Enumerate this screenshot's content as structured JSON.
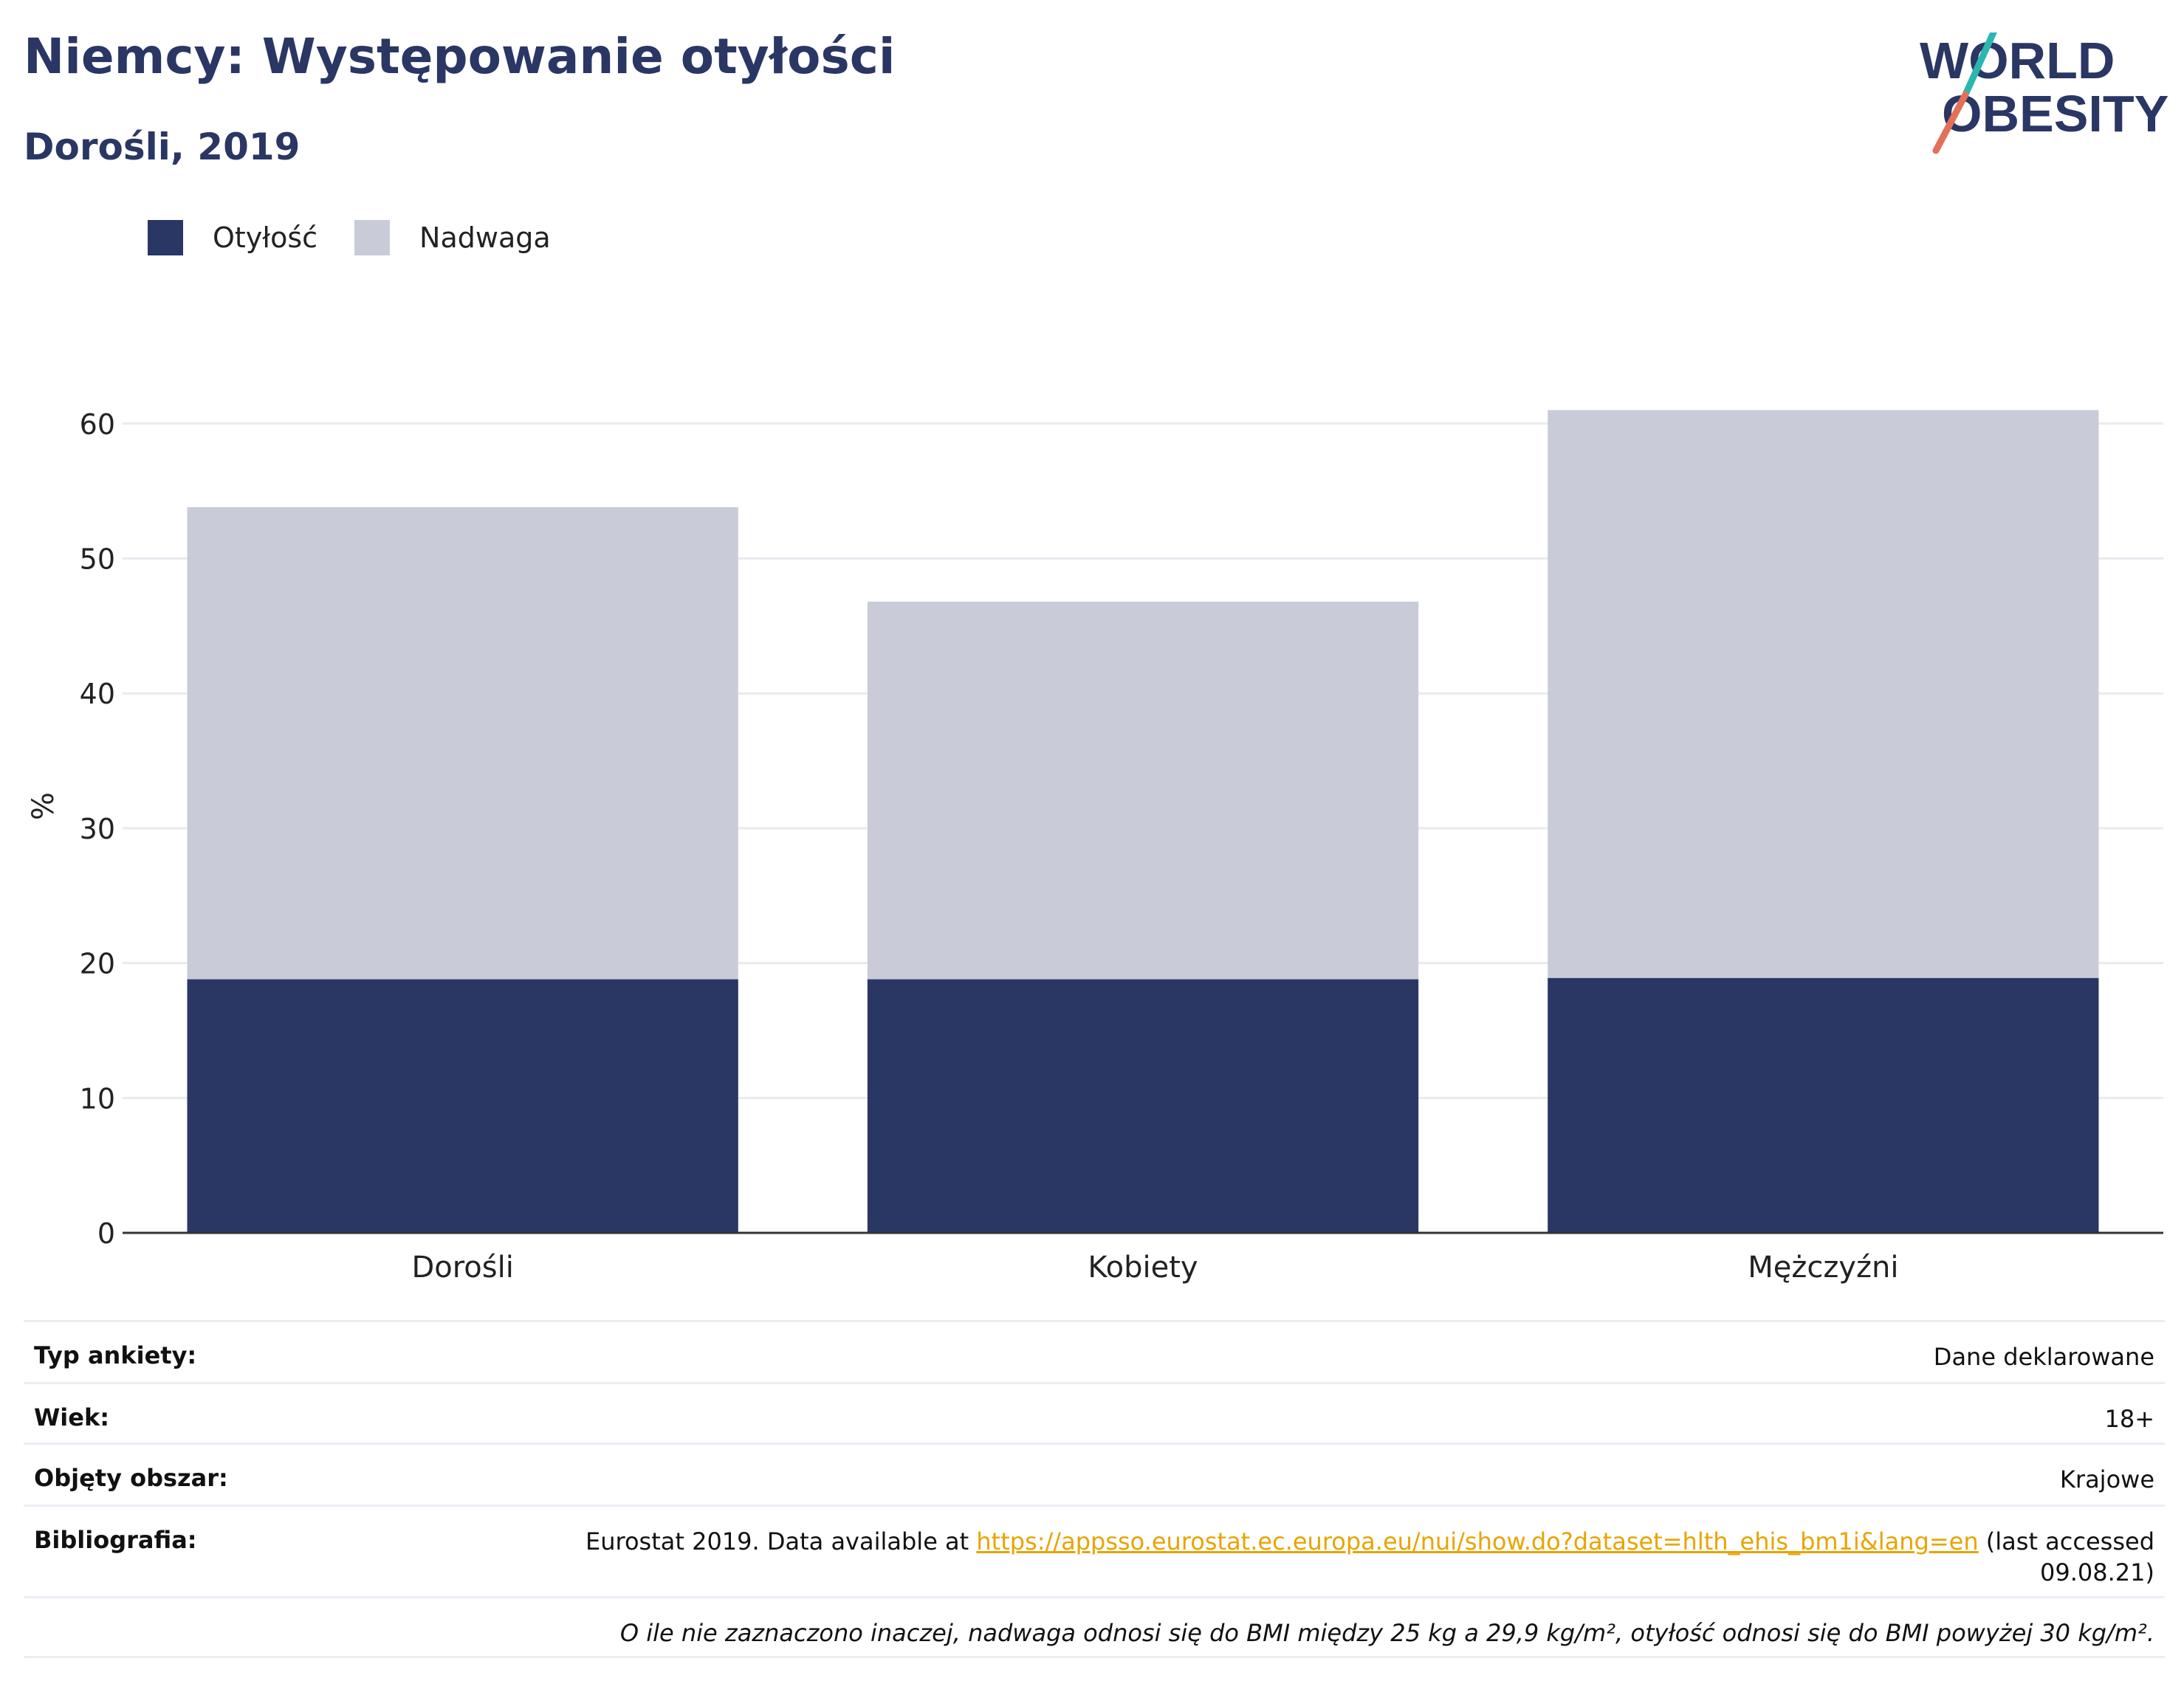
{
  "header": {
    "title": "Niemcy: Występowanie otyłości",
    "subtitle": "Dorośli, 2019"
  },
  "logo": {
    "line1": "WORLD",
    "line2": "OBESITY",
    "colors": {
      "text": "#2a3664",
      "teal": "#2bb6b0",
      "coral": "#e5705a"
    }
  },
  "legend": [
    {
      "label": "Otyłość",
      "color": "#2a3664"
    },
    {
      "label": "Nadwaga",
      "color": "#c9cbd8"
    }
  ],
  "chart_data": {
    "type": "bar",
    "stacked": true,
    "categories": [
      "Dorośli",
      "Kobiety",
      "Mężczyźni"
    ],
    "series": [
      {
        "name": "Otyłość",
        "values": [
          18.8,
          18.8,
          18.9
        ],
        "color": "#2a3664"
      },
      {
        "name": "Nadwaga",
        "values": [
          35.0,
          28.0,
          42.1
        ],
        "color": "#c9cbd8"
      }
    ],
    "ylabel": "%",
    "ylim": [
      0,
      62
    ],
    "yticks": [
      "0",
      "10",
      "20",
      "30",
      "40",
      "50",
      "60"
    ],
    "grid": true,
    "legend_position": "top-left"
  },
  "info": {
    "survey_type": {
      "label": "Typ ankiety:",
      "value": "Dane deklarowane"
    },
    "age": {
      "label": "Wiek:",
      "value": "18+"
    },
    "coverage": {
      "label": "Objęty obszar:",
      "value": "Krajowe"
    },
    "bibliography": {
      "label": "Bibliografia:",
      "prefix": "Eurostat 2019. Data available at ",
      "link": "https://appsso.eurostat.ec.europa.eu/nui/show.do?dataset=hlth_ehis_bm1i&lang=en",
      "suffix": " (last accessed",
      "date": "09.08.21)"
    },
    "note": "O ile nie zaznaczono inaczej, nadwaga odnosi się do BMI między 25 kg a 29,9 kg/m², otyłość odnosi się do BMI powyżej 30 kg/m²."
  }
}
